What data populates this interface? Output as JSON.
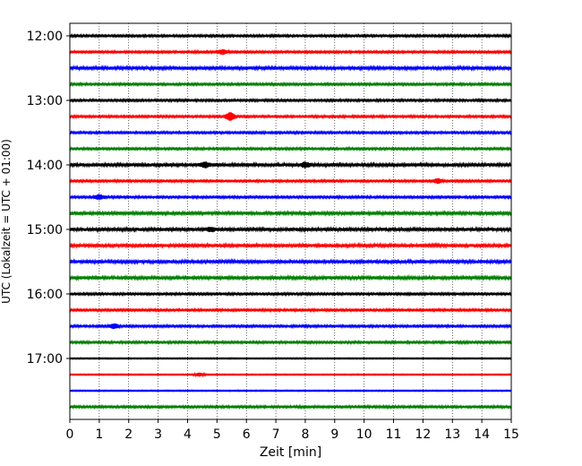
{
  "chart_data": {
    "type": "line",
    "title": "",
    "xlabel": "Zeit  [min]",
    "ylabel": "UTC (Lokalzeit = UTC + 01:00)",
    "xlim": [
      0,
      15
    ],
    "x_ticks": [
      "0",
      "1",
      "2",
      "3",
      "4",
      "5",
      "6",
      "7",
      "8",
      "9",
      "10",
      "11",
      "12",
      "13",
      "14",
      "15"
    ],
    "y_ticks": [
      "12:00",
      "13:00",
      "14:00",
      "15:00",
      "16:00",
      "17:00"
    ],
    "x_grid": "dotted vertical at each minute",
    "trace_interval_minutes": 15,
    "trace_colors": [
      "#000000",
      "#ff0000",
      "#0000ff",
      "#008000"
    ],
    "traces_start": [
      "12:00",
      "12:15",
      "12:30",
      "12:45",
      "13:00",
      "13:15",
      "13:30",
      "13:45",
      "14:00",
      "14:15",
      "14:30",
      "14:45",
      "15:00",
      "15:15",
      "15:30",
      "15:45",
      "16:00",
      "16:15",
      "16:30",
      "16:45",
      "17:00",
      "17:15",
      "17:30",
      "17:45"
    ],
    "trace_noise": [
      2,
      2,
      3,
      2,
      2,
      2,
      2,
      2,
      3,
      2,
      2,
      3,
      3,
      3,
      3,
      3,
      2,
      2,
      2,
      2,
      1,
      1,
      1,
      2
    ],
    "events": [
      {
        "trace": 1,
        "x": 5.2,
        "amp": 4
      },
      {
        "trace": 5,
        "x": 5.45,
        "amp": 7
      },
      {
        "trace": 8,
        "x": 4.6,
        "amp": 4
      },
      {
        "trace": 8,
        "x": 8.0,
        "amp": 4
      },
      {
        "trace": 9,
        "x": 12.5,
        "amp": 4
      },
      {
        "trace": 10,
        "x": 1.0,
        "amp": 4
      },
      {
        "trace": 12,
        "x": 4.8,
        "amp": 3
      },
      {
        "trace": 18,
        "x": 1.5,
        "amp": 4
      },
      {
        "trace": 21,
        "x": 4.4,
        "amp": 3
      }
    ]
  }
}
